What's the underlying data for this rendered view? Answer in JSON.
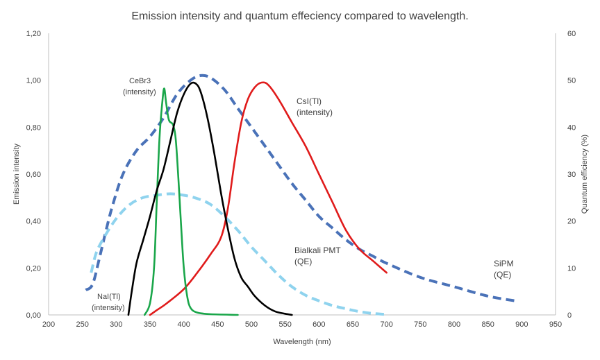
{
  "chart_data": {
    "type": "line",
    "title": "Emission intensity and quantum effeciency compared to wavelength.",
    "xlabel": "Wavelength (nm)",
    "ylabel_left": "Emission intensity",
    "ylabel_right": "Quantum efficiency (%)",
    "xlim": [
      200,
      950
    ],
    "ylim_left": [
      0,
      1.2
    ],
    "ylim_right": [
      0,
      60
    ],
    "x_ticks": [
      "200",
      "250",
      "300",
      "350",
      "400",
      "450",
      "500",
      "550",
      "600",
      "650",
      "700",
      "750",
      "800",
      "850",
      "900",
      "950"
    ],
    "y_left_ticks": [
      "0,00",
      "0,20",
      "0,40",
      "0,60",
      "0,80",
      "1,00",
      "1,20"
    ],
    "y_right_ticks": [
      "0",
      "10",
      "20",
      "30",
      "40",
      "50",
      "60"
    ],
    "grid": false,
    "colors": {
      "nai": "#000000",
      "cebr3": "#1aa64a",
      "csi": "#e01b1b",
      "bialkali": "#8fd3ee",
      "sipm": "#4a72b8",
      "axis": "#bfbfbf",
      "text": "#404040"
    },
    "series": [
      {
        "name": "NaI(Tl) (intensity)",
        "axis": "left",
        "style": "solid",
        "color_key": "nai",
        "points": [
          [
            318,
            0
          ],
          [
            323,
            0.1
          ],
          [
            330,
            0.22
          ],
          [
            340,
            0.32
          ],
          [
            350,
            0.42
          ],
          [
            360,
            0.53
          ],
          [
            370,
            0.62
          ],
          [
            380,
            0.74
          ],
          [
            390,
            0.86
          ],
          [
            400,
            0.94
          ],
          [
            410,
            0.985
          ],
          [
            418,
            0.985
          ],
          [
            425,
            0.95
          ],
          [
            435,
            0.84
          ],
          [
            445,
            0.69
          ],
          [
            455,
            0.52
          ],
          [
            465,
            0.37
          ],
          [
            475,
            0.24
          ],
          [
            485,
            0.16
          ],
          [
            495,
            0.12
          ],
          [
            505,
            0.08
          ],
          [
            520,
            0.04
          ],
          [
            535,
            0.015
          ],
          [
            550,
            0.005
          ],
          [
            560,
            0
          ]
        ]
      },
      {
        "name": "CeBr3 (intensity)",
        "axis": "left",
        "style": "solid",
        "color_key": "cebr3",
        "points": [
          [
            342,
            0
          ],
          [
            350,
            0.05
          ],
          [
            356,
            0.2
          ],
          [
            360,
            0.48
          ],
          [
            364,
            0.75
          ],
          [
            368,
            0.9
          ],
          [
            371,
            0.965
          ],
          [
            374,
            0.9
          ],
          [
            378,
            0.83
          ],
          [
            384,
            0.81
          ],
          [
            388,
            0.75
          ],
          [
            392,
            0.58
          ],
          [
            396,
            0.38
          ],
          [
            400,
            0.2
          ],
          [
            405,
            0.08
          ],
          [
            410,
            0.03
          ],
          [
            420,
            0.01
          ],
          [
            440,
            0.003
          ],
          [
            480,
            0
          ]
        ]
      },
      {
        "name": "CsI(Tl) (intensity)",
        "axis": "left",
        "style": "solid",
        "color_key": "csi",
        "points": [
          [
            350,
            0
          ],
          [
            360,
            0.02
          ],
          [
            375,
            0.05
          ],
          [
            400,
            0.11
          ],
          [
            420,
            0.18
          ],
          [
            440,
            0.26
          ],
          [
            455,
            0.33
          ],
          [
            465,
            0.45
          ],
          [
            475,
            0.65
          ],
          [
            485,
            0.82
          ],
          [
            495,
            0.92
          ],
          [
            505,
            0.97
          ],
          [
            515,
            0.99
          ],
          [
            525,
            0.98
          ],
          [
            540,
            0.92
          ],
          [
            560,
            0.82
          ],
          [
            580,
            0.72
          ],
          [
            600,
            0.6
          ],
          [
            620,
            0.48
          ],
          [
            640,
            0.36
          ],
          [
            660,
            0.28
          ],
          [
            680,
            0.23
          ],
          [
            700,
            0.18
          ]
        ]
      },
      {
        "name": "Bialkali PMT (QE)",
        "axis": "right",
        "style": "dashed",
        "color_key": "bialkali",
        "points": [
          [
            263,
            9
          ],
          [
            270,
            13
          ],
          [
            280,
            16
          ],
          [
            300,
            20.5
          ],
          [
            320,
            23.5
          ],
          [
            340,
            25
          ],
          [
            360,
            25.5
          ],
          [
            380,
            25.8
          ],
          [
            400,
            25.5
          ],
          [
            420,
            24.8
          ],
          [
            440,
            23.5
          ],
          [
            460,
            21
          ],
          [
            480,
            18
          ],
          [
            500,
            14.5
          ],
          [
            520,
            11.5
          ],
          [
            540,
            8.5
          ],
          [
            560,
            6
          ],
          [
            580,
            4.2
          ],
          [
            600,
            3
          ],
          [
            620,
            2
          ],
          [
            640,
            1.3
          ],
          [
            660,
            0.7
          ],
          [
            680,
            0.3
          ],
          [
            700,
            0.1
          ]
        ]
      },
      {
        "name": "SiPM (QE)",
        "axis": "right",
        "style": "dashed",
        "color_key": "sipm",
        "points": [
          [
            255,
            5.3
          ],
          [
            265,
            6.5
          ],
          [
            275,
            12
          ],
          [
            285,
            18
          ],
          [
            295,
            23.5
          ],
          [
            310,
            30
          ],
          [
            330,
            35
          ],
          [
            350,
            38
          ],
          [
            370,
            42
          ],
          [
            390,
            47
          ],
          [
            410,
            50
          ],
          [
            425,
            51
          ],
          [
            440,
            50.5
          ],
          [
            460,
            48
          ],
          [
            480,
            44
          ],
          [
            500,
            40
          ],
          [
            520,
            36
          ],
          [
            540,
            32
          ],
          [
            560,
            28
          ],
          [
            580,
            24.5
          ],
          [
            600,
            21
          ],
          [
            620,
            18.5
          ],
          [
            640,
            16
          ],
          [
            660,
            14
          ],
          [
            680,
            12.5
          ],
          [
            700,
            11
          ],
          [
            750,
            8
          ],
          [
            800,
            6
          ],
          [
            850,
            4
          ],
          [
            890,
            3
          ]
        ]
      }
    ],
    "annotations": {
      "cebr3_name": "CeBr3",
      "cebr3_sub": "(intensity)",
      "csi_name": "CsI(Tl)",
      "csi_sub": "(intensity)",
      "bialkali_name": "Bialkali PMT",
      "bialkali_sub": "(QE)",
      "sipm_name": "SiPM",
      "sipm_sub": "(QE)",
      "nai_name": "NaI(Tl)",
      "nai_sub": "(intensity)"
    }
  }
}
